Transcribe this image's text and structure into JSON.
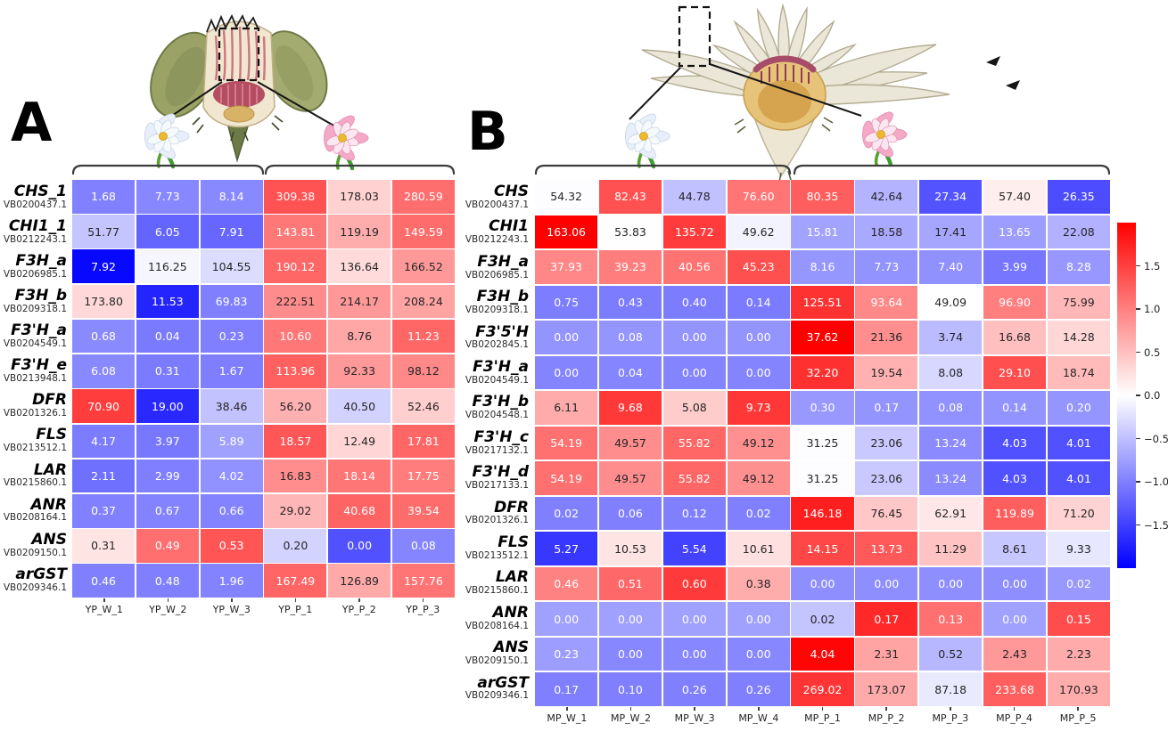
{
  "figure": {
    "panels": [
      {
        "label": "A"
      },
      {
        "label": "B"
      }
    ]
  },
  "colorbar": {
    "vmin": -2,
    "vmax": 2,
    "colors": {
      "low": "#0000ff",
      "mid": "#ffffff",
      "high": "#ff0000"
    },
    "ticks": [
      {
        "label": "1.5",
        "value": 1.5
      },
      {
        "label": "1.0",
        "value": 1.0
      },
      {
        "label": "0.5",
        "value": 0.5
      },
      {
        "label": "0.0",
        "value": 0.0
      },
      {
        "label": "−0.5",
        "value": -0.5
      },
      {
        "label": "−1.0",
        "value": -1.0
      },
      {
        "label": "−1.5",
        "value": -1.5
      }
    ]
  },
  "illustrations": {
    "panel_a": {
      "bud": "young-flower-bud-cross-section",
      "flowers": [
        "white-flower",
        "pink-flower"
      ],
      "sepal_color": "#9aa266",
      "petal_band_color": "#b44d61"
    },
    "panel_b": {
      "bud": "mature-flower-bud-cross-section",
      "flowers": [
        "white-flower",
        "pink-flower"
      ],
      "petal_color": "#ebe7d8",
      "center_color": "#e7c379"
    }
  },
  "chart_data": [
    {
      "type": "heatmap",
      "panel": "A",
      "columns": [
        "YP_W_1",
        "YP_W_2",
        "YP_W_3",
        "YP_P_1",
        "YP_P_2",
        "YP_P_3"
      ],
      "column_groups": [
        {
          "flower": "white",
          "columns": [
            "YP_W_1",
            "YP_W_2",
            "YP_W_3"
          ]
        },
        {
          "flower": "pink",
          "columns": [
            "YP_P_1",
            "YP_P_2",
            "YP_P_3"
          ]
        }
      ],
      "normalization": "row_zscore",
      "colormap": "blue-white-red",
      "color_scale": {
        "vmin": -2,
        "vmax": 2
      },
      "annotation_format": "2dp",
      "rows": [
        {
          "gene": "CHS_1",
          "accession": "VB0200437.1",
          "values": [
            1.68,
            7.73,
            8.14,
            309.38,
            178.03,
            280.59
          ]
        },
        {
          "gene": "CHI1_1",
          "accession": "VB0212243.1",
          "values": [
            51.77,
            6.05,
            7.91,
            143.81,
            119.19,
            149.59
          ]
        },
        {
          "gene": "F3H_a",
          "accession": "VB0206985.1",
          "values": [
            7.92,
            116.25,
            104.55,
            190.12,
            136.64,
            166.52
          ]
        },
        {
          "gene": "F3H_b",
          "accession": "VB0209318.1",
          "values": [
            173.8,
            11.53,
            69.83,
            222.51,
            214.17,
            208.24
          ]
        },
        {
          "gene": "F3'H_a",
          "accession": "VB0204549.1",
          "values": [
            0.68,
            0.04,
            0.23,
            10.6,
            8.76,
            11.23
          ]
        },
        {
          "gene": "F3'H_e",
          "accession": "VB0213948.1",
          "values": [
            6.08,
            0.31,
            1.67,
            113.96,
            92.33,
            98.12
          ]
        },
        {
          "gene": "DFR",
          "accession": "VB0201326.1",
          "values": [
            70.9,
            19.0,
            38.46,
            56.2,
            40.5,
            52.46
          ]
        },
        {
          "gene": "FLS",
          "accession": "VB0213512.1",
          "values": [
            4.17,
            3.97,
            5.89,
            18.57,
            12.49,
            17.81
          ]
        },
        {
          "gene": "LAR",
          "accession": "VB0215860.1",
          "values": [
            2.11,
            2.99,
            4.02,
            16.83,
            18.14,
            17.75
          ]
        },
        {
          "gene": "ANR",
          "accession": "VB0208164.1",
          "values": [
            0.37,
            0.67,
            0.66,
            29.02,
            40.68,
            39.54
          ]
        },
        {
          "gene": "ANS",
          "accession": "VB0209150.1",
          "values": [
            0.31,
            0.49,
            0.53,
            0.2,
            0.0,
            0.08
          ]
        },
        {
          "gene": "arGST",
          "accession": "VB0209346.1",
          "values": [
            0.46,
            0.48,
            1.96,
            167.49,
            126.89,
            157.76
          ]
        }
      ]
    },
    {
      "type": "heatmap",
      "panel": "B",
      "columns": [
        "MP_W_1",
        "MP_W_2",
        "MP_W_3",
        "MP_W_4",
        "MP_P_1",
        "MP_P_2",
        "MP_P_3",
        "MP_P_4",
        "MP_P_5"
      ],
      "column_groups": [
        {
          "flower": "white",
          "columns": [
            "MP_W_1",
            "MP_W_2",
            "MP_W_3",
            "MP_W_4"
          ]
        },
        {
          "flower": "pink",
          "columns": [
            "MP_P_1",
            "MP_P_2",
            "MP_P_3",
            "MP_P_4",
            "MP_P_5"
          ]
        }
      ],
      "normalization": "row_zscore",
      "colormap": "blue-white-red",
      "color_scale": {
        "vmin": -2,
        "vmax": 2
      },
      "annotation_format": "2dp",
      "rows": [
        {
          "gene": "CHS",
          "accession": "VB0200437.1",
          "values": [
            54.32,
            82.43,
            44.78,
            76.6,
            80.35,
            42.64,
            27.34,
            57.4,
            26.35
          ]
        },
        {
          "gene": "CHI1",
          "accession": "VB0212243.1",
          "values": [
            163.06,
            53.83,
            135.72,
            49.62,
            15.81,
            18.58,
            17.41,
            13.65,
            22.08
          ]
        },
        {
          "gene": "F3H_a",
          "accession": "VB0206985.1",
          "values": [
            37.93,
            39.23,
            40.56,
            45.23,
            8.16,
            7.73,
            7.4,
            3.99,
            8.28
          ]
        },
        {
          "gene": "F3H_b",
          "accession": "VB0209318.1",
          "values": [
            0.75,
            0.43,
            0.4,
            0.14,
            125.51,
            93.64,
            49.09,
            96.9,
            75.99
          ]
        },
        {
          "gene": "F3'5'H",
          "accession": "VB0202845.1",
          "values": [
            0.0,
            0.08,
            0.0,
            0.0,
            37.62,
            21.36,
            3.74,
            16.68,
            14.28
          ]
        },
        {
          "gene": "F3'H_a",
          "accession": "VB0204549.1",
          "values": [
            0.0,
            0.04,
            0.0,
            0.0,
            32.2,
            19.54,
            8.08,
            29.1,
            18.74
          ]
        },
        {
          "gene": "F3'H_b",
          "accession": "VB0204548.1",
          "values": [
            6.11,
            9.68,
            5.08,
            9.73,
            0.3,
            0.17,
            0.08,
            0.14,
            0.2
          ]
        },
        {
          "gene": "F3'H_c",
          "accession": "VB0217132.1",
          "values": [
            54.19,
            49.57,
            55.82,
            49.12,
            31.25,
            23.06,
            13.24,
            4.03,
            4.01
          ]
        },
        {
          "gene": "F3'H_d",
          "accession": "VB0217133.1",
          "values": [
            54.19,
            49.57,
            55.82,
            49.12,
            31.25,
            23.06,
            13.24,
            4.03,
            4.01
          ]
        },
        {
          "gene": "DFR",
          "accession": "VB0201326.1",
          "values": [
            0.02,
            0.06,
            0.12,
            0.02,
            146.18,
            76.45,
            62.91,
            119.89,
            71.2
          ]
        },
        {
          "gene": "FLS",
          "accession": "VB0213512.1",
          "values": [
            5.27,
            10.53,
            5.54,
            10.61,
            14.15,
            13.73,
            11.29,
            8.61,
            9.33
          ]
        },
        {
          "gene": "LAR",
          "accession": "VB0215860.1",
          "values": [
            0.46,
            0.51,
            0.6,
            0.38,
            0.0,
            0.0,
            0.0,
            0.0,
            0.02
          ]
        },
        {
          "gene": "ANR",
          "accession": "VB0208164.1",
          "values": [
            0.0,
            0.0,
            0.0,
            0.0,
            0.02,
            0.17,
            0.13,
            0.0,
            0.15
          ]
        },
        {
          "gene": "ANS",
          "accession": "VB0209150.1",
          "values": [
            0.23,
            0.0,
            0.0,
            0.0,
            4.04,
            2.31,
            0.52,
            2.43,
            2.23
          ]
        },
        {
          "gene": "arGST",
          "accession": "VB0209346.1",
          "values": [
            0.17,
            0.1,
            0.26,
            0.26,
            269.02,
            173.07,
            87.18,
            233.68,
            170.93
          ]
        }
      ]
    }
  ]
}
